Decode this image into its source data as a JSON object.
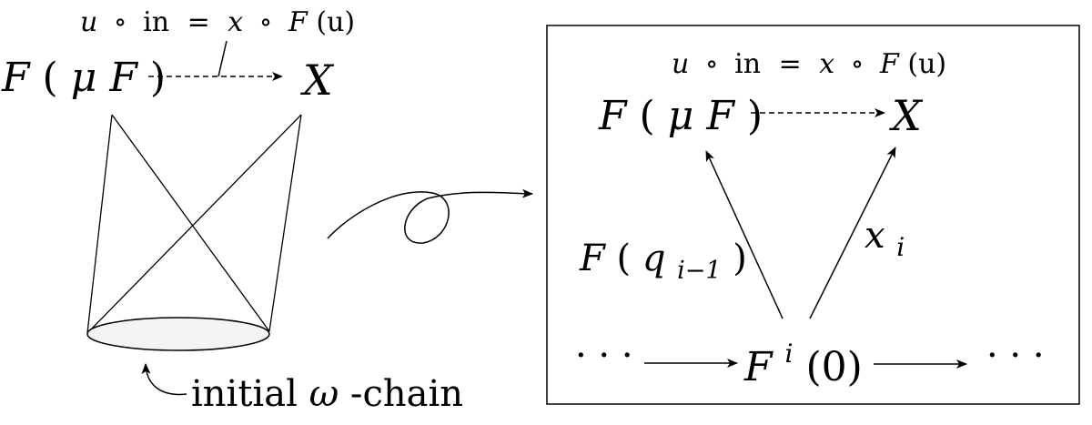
{
  "left_panel": {
    "top_label": {
      "u": "u",
      "circ1": "∘",
      "in": "in",
      "eq": "=",
      "x": "x",
      "circ2": "∘",
      "F": "F",
      "arg": "(u)"
    },
    "source": {
      "F": "F",
      "open": "(",
      "mu": "μ",
      "F2": "F",
      "close": ")"
    },
    "target": "X",
    "cone_caption": {
      "pre": "initial ",
      "omega": "ω",
      "post": "-chain"
    }
  },
  "right_panel": {
    "top_label": {
      "u": "u",
      "circ1": "∘",
      "in": "in",
      "eq": "=",
      "x": "x",
      "circ2": "∘",
      "F": "F",
      "arg": "(u)"
    },
    "source": {
      "F": "F",
      "open": "(",
      "mu": "μ",
      "F2": "F",
      "close": ")"
    },
    "target": "X",
    "left_arrow_label": {
      "F": "F",
      "open": "(",
      "q": "q",
      "sub": "i−1",
      "close": ")"
    },
    "right_arrow_label": {
      "x": "x",
      "sub": "i"
    },
    "chain_node": {
      "F": "F",
      "sup": "i",
      "arg": "(0)"
    },
    "chain_left_dots": "· · ·",
    "chain_right_dots": "· · ·"
  },
  "colors": {
    "stroke": "#000000",
    "ellipse_fill": "#f3f3f3",
    "background": "#ffffff"
  }
}
